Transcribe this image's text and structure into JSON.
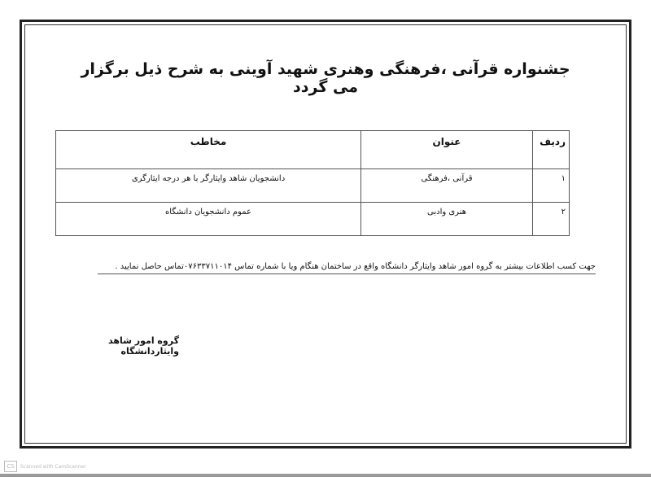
{
  "title": "جشنواره قرآنی ،فرهنگی وهنری شهید آوینی به شرح ذیل برگزار می گردد",
  "table": {
    "headers": [
      "ردیف",
      "عنوان",
      "مخاطب"
    ],
    "rows": [
      [
        "۱",
        "قرآنی ،فرهنگی",
        "دانشجویان شاهد وایثارگر با هر درجه ایثارگری"
      ],
      [
        "۲",
        "هنری وادبی",
        "عموم دانشجویان دانشگاه"
      ]
    ]
  },
  "note": "جهت کسب اطلاعات بیشتر به گروه امور شاهد وایثارگر دانشگاه واقع در ساختمان هنگام ویا با شماره تماس ۰۷۶۳۳۷۱۱۰۱۴تماس حاصل نمایید .",
  "signature": "گروه امور شاهد وایثاردانشگاه",
  "watermark": {
    "logo": "CS",
    "text": "Scanned with CamScanner"
  }
}
